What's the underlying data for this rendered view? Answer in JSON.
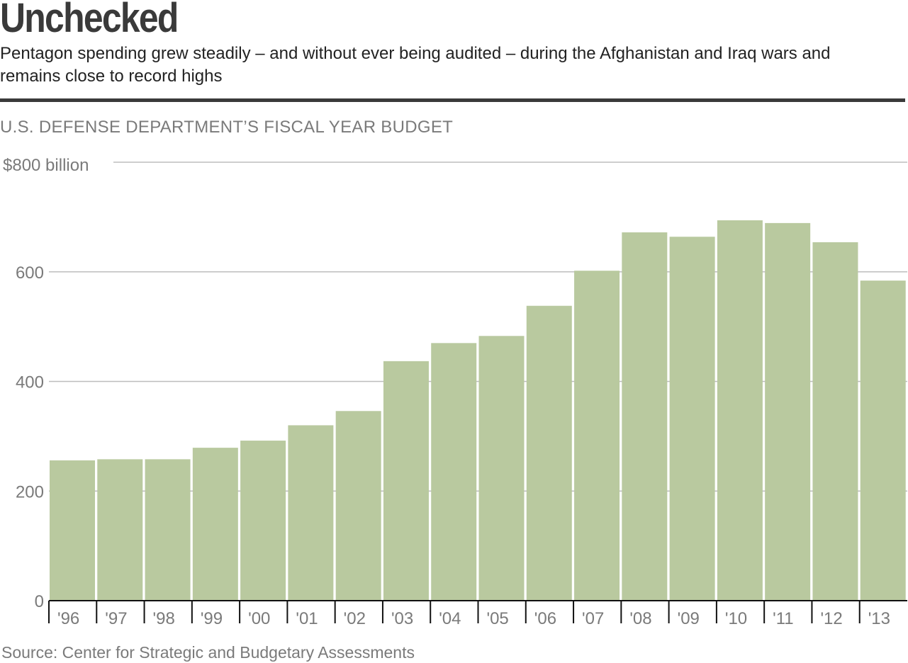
{
  "header": {
    "title": "Unchecked",
    "subtitle": "Pentagon spending grew steadily – and without ever being audited – during the Afghanistan and Iraq wars and remains close to record highs"
  },
  "chart_label": "U.S. DEFENSE DEPARTMENT’S FISCAL YEAR BUDGET",
  "source": "Source: Center for Strategic and Budgetary Assessments",
  "colors": {
    "bar": "#b9c99f",
    "grid": "#bdbdbd",
    "axis_text": "#7a7a7a",
    "title": "#3a3a3a"
  },
  "chart_data": {
    "type": "bar",
    "categories": [
      "'96",
      "'97",
      "'98",
      "'99",
      "'00",
      "'01",
      "'02",
      "'03",
      "'04",
      "'05",
      "'06",
      "'07",
      "'08",
      "'09",
      "'10",
      "'11",
      "'12",
      "'13"
    ],
    "values": [
      256,
      258,
      258,
      279,
      292,
      320,
      346,
      437,
      470,
      483,
      538,
      602,
      672,
      664,
      694,
      689,
      654,
      584
    ],
    "ylim": [
      0,
      800
    ],
    "yticks": [
      0,
      200,
      400,
      600,
      800
    ],
    "ytick_labels": [
      "0",
      "200",
      "400",
      "600",
      "$800 billion"
    ],
    "grid": true
  }
}
